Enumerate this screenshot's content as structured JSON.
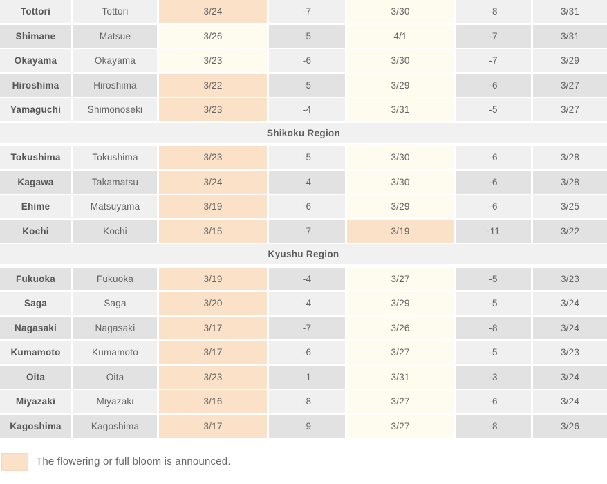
{
  "colors": {
    "announced_bg": "#fbe1c8",
    "forecast_bg": "#fdfcee",
    "row_light": "#f0f0f0",
    "row_dark": "#e2e2e2",
    "section_band_bg": "#f1f1f1",
    "text": "#636363"
  },
  "legend": {
    "label": "The flowering or full bloom is announced."
  },
  "table": {
    "sections": [
      {
        "header": null,
        "rows": [
          {
            "prefecture": "Tottori",
            "city": "Tottori",
            "shade": "light",
            "flowering_date": "3/24",
            "flowering_announced": true,
            "flowering_diff": "-7",
            "full_bloom_date": "3/30",
            "full_bloom_announced": false,
            "full_bloom_diff": "-8",
            "third_date": "3/31"
          },
          {
            "prefecture": "Shimane",
            "city": "Matsue",
            "shade": "dark",
            "flowering_date": "3/26",
            "flowering_announced": false,
            "flowering_diff": "-5",
            "full_bloom_date": "4/1",
            "full_bloom_announced": false,
            "full_bloom_diff": "-7",
            "third_date": "3/31"
          },
          {
            "prefecture": "Okayama",
            "city": "Okayama",
            "shade": "light",
            "flowering_date": "3/23",
            "flowering_announced": false,
            "flowering_diff": "-6",
            "full_bloom_date": "3/30",
            "full_bloom_announced": false,
            "full_bloom_diff": "-7",
            "third_date": "3/29"
          },
          {
            "prefecture": "Hiroshima",
            "city": "Hiroshima",
            "shade": "dark",
            "flowering_date": "3/22",
            "flowering_announced": true,
            "flowering_diff": "-5",
            "full_bloom_date": "3/29",
            "full_bloom_announced": false,
            "full_bloom_diff": "-6",
            "third_date": "3/27"
          },
          {
            "prefecture": "Yamaguchi",
            "city": "Shimonoseki",
            "shade": "light",
            "flowering_date": "3/23",
            "flowering_announced": true,
            "flowering_diff": "-4",
            "full_bloom_date": "3/31",
            "full_bloom_announced": false,
            "full_bloom_diff": "-5",
            "third_date": "3/27"
          }
        ]
      },
      {
        "header": "Shikoku Region",
        "rows": [
          {
            "prefecture": "Tokushima",
            "city": "Tokushima",
            "shade": "light",
            "flowering_date": "3/23",
            "flowering_announced": true,
            "flowering_diff": "-5",
            "full_bloom_date": "3/30",
            "full_bloom_announced": false,
            "full_bloom_diff": "-6",
            "third_date": "3/28"
          },
          {
            "prefecture": "Kagawa",
            "city": "Takamatsu",
            "shade": "dark",
            "flowering_date": "3/24",
            "flowering_announced": true,
            "flowering_diff": "-4",
            "full_bloom_date": "3/30",
            "full_bloom_announced": false,
            "full_bloom_diff": "-6",
            "third_date": "3/28"
          },
          {
            "prefecture": "Ehime",
            "city": "Matsuyama",
            "shade": "light",
            "flowering_date": "3/19",
            "flowering_announced": true,
            "flowering_diff": "-6",
            "full_bloom_date": "3/29",
            "full_bloom_announced": false,
            "full_bloom_diff": "-6",
            "third_date": "3/25"
          },
          {
            "prefecture": "Kochi",
            "city": "Kochi",
            "shade": "dark",
            "flowering_date": "3/15",
            "flowering_announced": true,
            "flowering_diff": "-7",
            "full_bloom_date": "3/19",
            "full_bloom_announced": true,
            "full_bloom_diff": "-11",
            "third_date": "3/22"
          }
        ]
      },
      {
        "header": "Kyushu Region",
        "rows": [
          {
            "prefecture": "Fukuoka",
            "city": "Fukuoka",
            "shade": "dark",
            "flowering_date": "3/19",
            "flowering_announced": true,
            "flowering_diff": "-4",
            "full_bloom_date": "3/27",
            "full_bloom_announced": false,
            "full_bloom_diff": "-5",
            "third_date": "3/23"
          },
          {
            "prefecture": "Saga",
            "city": "Saga",
            "shade": "light",
            "flowering_date": "3/20",
            "flowering_announced": true,
            "flowering_diff": "-4",
            "full_bloom_date": "3/29",
            "full_bloom_announced": false,
            "full_bloom_diff": "-5",
            "third_date": "3/24"
          },
          {
            "prefecture": "Nagasaki",
            "city": "Nagasaki",
            "shade": "dark",
            "flowering_date": "3/17",
            "flowering_announced": true,
            "flowering_diff": "-7",
            "full_bloom_date": "3/26",
            "full_bloom_announced": false,
            "full_bloom_diff": "-8",
            "third_date": "3/24"
          },
          {
            "prefecture": "Kumamoto",
            "city": "Kumamoto",
            "shade": "light",
            "flowering_date": "3/17",
            "flowering_announced": true,
            "flowering_diff": "-6",
            "full_bloom_date": "3/27",
            "full_bloom_announced": false,
            "full_bloom_diff": "-5",
            "third_date": "3/23"
          },
          {
            "prefecture": "Oita",
            "city": "Oita",
            "shade": "dark",
            "flowering_date": "3/23",
            "flowering_announced": true,
            "flowering_diff": "-1",
            "full_bloom_date": "3/31",
            "full_bloom_announced": false,
            "full_bloom_diff": "-3",
            "third_date": "3/24"
          },
          {
            "prefecture": "Miyazaki",
            "city": "Miyazaki",
            "shade": "light",
            "flowering_date": "3/16",
            "flowering_announced": true,
            "flowering_diff": "-8",
            "full_bloom_date": "3/27",
            "full_bloom_announced": false,
            "full_bloom_diff": "-6",
            "third_date": "3/24"
          },
          {
            "prefecture": "Kagoshima",
            "city": "Kagoshima",
            "shade": "dark",
            "flowering_date": "3/17",
            "flowering_announced": true,
            "flowering_diff": "-9",
            "full_bloom_date": "3/27",
            "full_bloom_announced": false,
            "full_bloom_diff": "-8",
            "third_date": "3/26"
          }
        ]
      }
    ]
  }
}
